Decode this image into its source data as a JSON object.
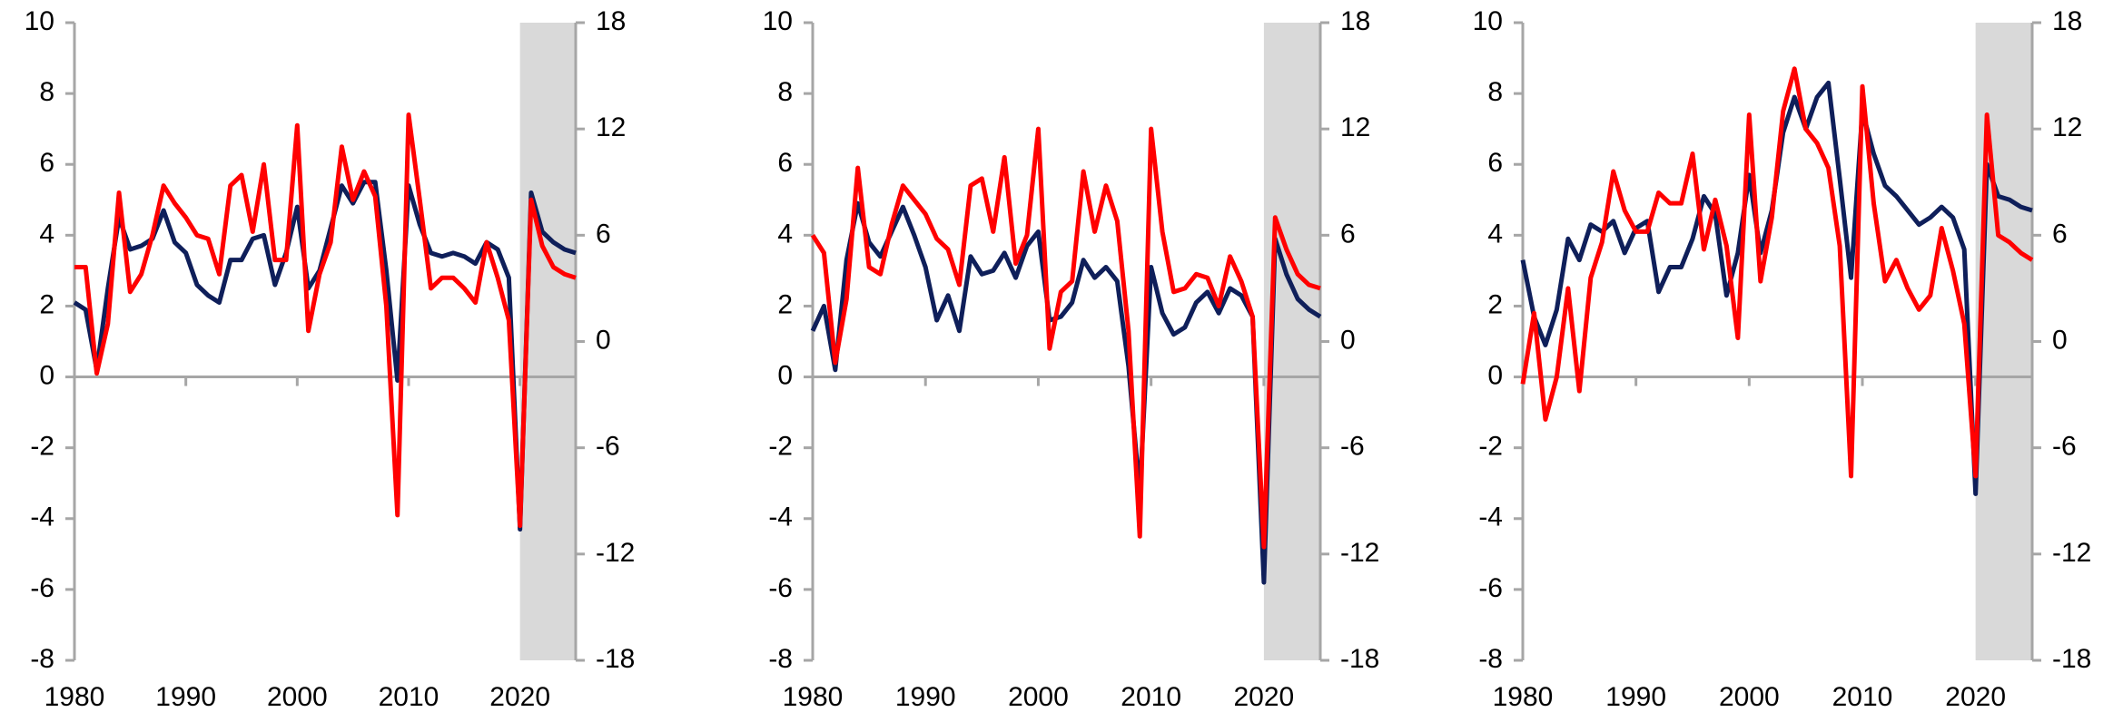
{
  "chart_data": [
    {
      "type": "line",
      "x": [
        1980,
        1981,
        1982,
        1983,
        1984,
        1985,
        1986,
        1987,
        1988,
        1989,
        1990,
        1991,
        1992,
        1993,
        1994,
        1995,
        1996,
        1997,
        1998,
        1999,
        2000,
        2001,
        2002,
        2003,
        2004,
        2005,
        2006,
        2007,
        2008,
        2009,
        2010,
        2011,
        2012,
        2013,
        2014,
        2015,
        2016,
        2017,
        2018,
        2019,
        2020,
        2021,
        2022,
        2023,
        2024,
        2025
      ],
      "xlim": [
        1980,
        2025
      ],
      "xticks": [
        1980,
        1990,
        2000,
        2010,
        2020
      ],
      "ylim": [
        -8,
        10
      ],
      "yticks": [
        -8,
        -6,
        -4,
        -2,
        0,
        2,
        4,
        6,
        8,
        10
      ],
      "y2lim": [
        -18,
        18
      ],
      "y2ticks": [
        -18,
        -12,
        -6,
        0,
        6,
        12,
        18
      ],
      "shaded_x": [
        2020,
        2025
      ],
      "shade_color": "#d9d9d9",
      "series": [
        {
          "color": "#0f1f5a",
          "values": [
            2.1,
            1.9,
            0.2,
            2.5,
            4.5,
            3.6,
            3.7,
            3.9,
            4.7,
            3.8,
            3.5,
            2.6,
            2.3,
            2.1,
            3.3,
            3.3,
            3.9,
            4.0,
            2.6,
            3.5,
            4.8,
            2.5,
            3.0,
            4.2,
            5.4,
            4.9,
            5.5,
            5.5,
            3.0,
            -0.1,
            5.4,
            4.3,
            3.5,
            3.4,
            3.5,
            3.4,
            3.2,
            3.8,
            3.6,
            2.8,
            -4.3,
            5.2,
            4.1,
            3.8,
            3.6,
            3.5
          ]
        },
        {
          "color": "#ff0000",
          "axis": "y2",
          "values": [
            4.2,
            4.2,
            -1.8,
            1,
            8.4,
            2.8,
            3.8,
            6,
            8.8,
            7.8,
            7,
            6,
            5.8,
            3.8,
            8.8,
            9.4,
            6.2,
            10,
            4.6,
            4.6,
            12.2,
            0.6,
            3.8,
            5.6,
            11,
            8,
            9.6,
            8.2,
            2,
            -9.8,
            12.8,
            8,
            3,
            3.6,
            3.6,
            3,
            2.2,
            5.6,
            3.6,
            1.2,
            -10.4,
            8,
            5.4,
            4.2,
            3.8,
            3.6
          ]
        }
      ]
    },
    {
      "type": "line",
      "x": [
        1980,
        1981,
        1982,
        1983,
        1984,
        1985,
        1986,
        1987,
        1988,
        1989,
        1990,
        1991,
        1992,
        1993,
        1994,
        1995,
        1996,
        1997,
        1998,
        1999,
        2000,
        2001,
        2002,
        2003,
        2004,
        2005,
        2006,
        2007,
        2008,
        2009,
        2010,
        2011,
        2012,
        2013,
        2014,
        2015,
        2016,
        2017,
        2018,
        2019,
        2020,
        2021,
        2022,
        2023,
        2024,
        2025
      ],
      "xlim": [
        1980,
        2025
      ],
      "xticks": [
        1980,
        1990,
        2000,
        2010,
        2020
      ],
      "ylim": [
        -8,
        10
      ],
      "yticks": [
        -8,
        -6,
        -4,
        -2,
        0,
        2,
        4,
        6,
        8,
        10
      ],
      "y2lim": [
        -18,
        18
      ],
      "y2ticks": [
        -18,
        -12,
        -6,
        0,
        6,
        12,
        18
      ],
      "shaded_x": [
        2020,
        2025
      ],
      "shade_color": "#d9d9d9",
      "series": [
        {
          "color": "#0f1f5a",
          "values": [
            1.3,
            2.0,
            0.2,
            3.3,
            4.9,
            3.8,
            3.4,
            4.1,
            4.8,
            4.0,
            3.1,
            1.6,
            2.3,
            1.3,
            3.4,
            2.9,
            3.0,
            3.5,
            2.8,
            3.7,
            4.1,
            1.6,
            1.7,
            2.1,
            3.3,
            2.8,
            3.1,
            2.7,
            0.3,
            -3.3,
            3.1,
            1.8,
            1.2,
            1.4,
            2.1,
            2.4,
            1.8,
            2.5,
            2.3,
            1.7,
            -5.8,
            3.9,
            2.9,
            2.2,
            1.9,
            1.7
          ]
        },
        {
          "color": "#ff0000",
          "axis": "y2",
          "values": [
            6,
            5,
            -1.2,
            2.4,
            9.8,
            4.2,
            3.8,
            6.6,
            8.8,
            8,
            7.2,
            5.8,
            5.2,
            3.2,
            8.8,
            9.2,
            6.2,
            10.4,
            4.4,
            6,
            12,
            -0.4,
            2.8,
            3.4,
            9.6,
            6.2,
            8.8,
            6.8,
            0.6,
            -11,
            12,
            6.2,
            2.8,
            3,
            3.8,
            3.6,
            2,
            4.8,
            3.4,
            1.4,
            -11.6,
            7,
            5.2,
            3.8,
            3.2,
            3
          ]
        }
      ]
    },
    {
      "type": "line",
      "x": [
        1980,
        1981,
        1982,
        1983,
        1984,
        1985,
        1986,
        1987,
        1988,
        1989,
        1990,
        1991,
        1992,
        1993,
        1994,
        1995,
        1996,
        1997,
        1998,
        1999,
        2000,
        2001,
        2002,
        2003,
        2004,
        2005,
        2006,
        2007,
        2008,
        2009,
        2010,
        2011,
        2012,
        2013,
        2014,
        2015,
        2016,
        2017,
        2018,
        2019,
        2020,
        2021,
        2022,
        2023,
        2024,
        2025
      ],
      "xlim": [
        1980,
        2025
      ],
      "xticks": [
        1980,
        1990,
        2000,
        2010,
        2020
      ],
      "ylim": [
        -8,
        10
      ],
      "yticks": [
        -8,
        -6,
        -4,
        -2,
        0,
        2,
        4,
        6,
        8,
        10
      ],
      "y2lim": [
        -18,
        18
      ],
      "y2ticks": [
        -18,
        -12,
        -6,
        0,
        6,
        12,
        18
      ],
      "shaded_x": [
        2020,
        2025
      ],
      "shade_color": "#d9d9d9",
      "series": [
        {
          "color": "#0f1f5a",
          "values": [
            3.3,
            1.7,
            0.9,
            1.9,
            3.9,
            3.3,
            4.3,
            4.1,
            4.4,
            3.5,
            4.2,
            4.4,
            2.4,
            3.1,
            3.1,
            3.9,
            5.1,
            4.6,
            2.3,
            3.5,
            5.7,
            3.5,
            4.7,
            6.9,
            7.9,
            7.0,
            7.9,
            8.3,
            5.6,
            2.8,
            7.5,
            6.3,
            5.4,
            5.1,
            4.7,
            4.3,
            4.5,
            4.8,
            4.5,
            3.6,
            -3.3,
            6.0,
            5.1,
            5.0,
            4.8,
            4.7
          ]
        },
        {
          "color": "#ff0000",
          "axis": "y2",
          "values": [
            -2.4,
            1.6,
            -4.4,
            -2,
            3,
            -2.8,
            3.6,
            5.6,
            9.6,
            7.4,
            6.2,
            6.2,
            8.4,
            7.8,
            7.8,
            10.6,
            5.2,
            8,
            5.4,
            0.2,
            12.8,
            3.4,
            7,
            13,
            15.4,
            12,
            11.2,
            9.8,
            5.4,
            -7.6,
            14.4,
            7.8,
            3.4,
            4.6,
            3,
            1.8,
            2.6,
            6.4,
            4,
            1,
            -7.6,
            12.8,
            6,
            5.6,
            5,
            4.6
          ]
        }
      ]
    }
  ]
}
